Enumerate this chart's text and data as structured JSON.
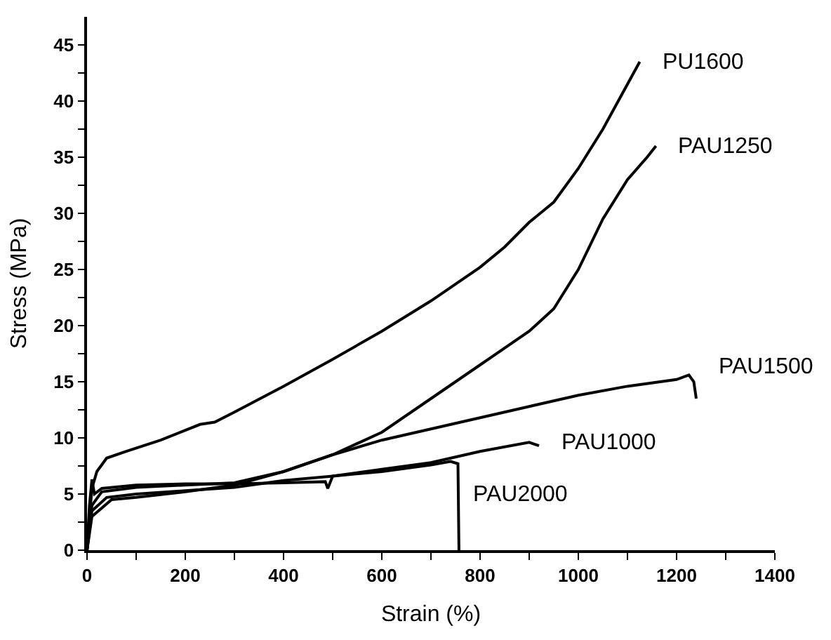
{
  "chart_data": {
    "type": "line",
    "xlabel": "Strain (%)",
    "ylabel": "Stress (MPa)",
    "xlim": [
      0,
      1400
    ],
    "ylim": [
      0,
      47.5
    ],
    "xticks": [
      0,
      {
        "value": 100,
        "label": null
      },
      200,
      {
        "value": 300,
        "label": null
      },
      400,
      {
        "value": 500,
        "label": null
      },
      600,
      {
        "value": 700,
        "label": null
      },
      800,
      {
        "value": 900,
        "label": null
      },
      1000,
      {
        "value": 1100,
        "label": null
      },
      1200,
      {
        "value": 1300,
        "label": null
      },
      1400
    ],
    "yticks": [
      0,
      {
        "value": 2.5,
        "label": null
      },
      5,
      {
        "value": 7.5,
        "label": null
      },
      10,
      {
        "value": 12.5,
        "label": null
      },
      15,
      {
        "value": 17.5,
        "label": null
      },
      20,
      {
        "value": 22.5,
        "label": null
      },
      25,
      {
        "value": 27.5,
        "label": null
      },
      30,
      {
        "value": 32.5,
        "label": null
      },
      35,
      {
        "value": 37.5,
        "label": null
      },
      40,
      {
        "value": 42.5,
        "label": null
      },
      45
    ],
    "marker": "none",
    "line_style": "solid",
    "series": [
      {
        "name": "PU1600",
        "color": "#000000",
        "x": [
          0,
          5,
          10,
          20,
          40,
          80,
          150,
          230,
          260,
          300,
          400,
          500,
          600,
          700,
          800,
          850,
          900,
          950,
          1000,
          1050,
          1100,
          1125
        ],
        "values": [
          0,
          3,
          5.5,
          7,
          8.2,
          8.8,
          9.8,
          11.2,
          11.4,
          12.3,
          14.6,
          17,
          19.5,
          22.2,
          25.2,
          27,
          29.2,
          31,
          34,
          37.5,
          41.5,
          43.5
        ]
      },
      {
        "name": "PAU1250",
        "color": "#000000",
        "x": [
          0,
          10,
          30,
          100,
          200,
          300,
          400,
          500,
          600,
          700,
          800,
          900,
          950,
          1000,
          1050,
          1100,
          1140,
          1158
        ],
        "values": [
          0,
          4,
          5.2,
          5.6,
          5.8,
          6,
          7,
          8.5,
          10.5,
          13.5,
          16.5,
          19.5,
          21.5,
          25,
          29.5,
          33,
          35,
          36
        ]
      },
      {
        "name": "PAU1500",
        "color": "#000000",
        "x": [
          0,
          10,
          50,
          100,
          200,
          300,
          400,
          500,
          600,
          700,
          800,
          900,
          1000,
          1100,
          1200,
          1225,
          1235,
          1240
        ],
        "values": [
          0,
          3,
          4.5,
          4.7,
          5.2,
          5.8,
          7,
          8.5,
          9.8,
          10.8,
          11.8,
          12.8,
          13.8,
          14.6,
          15.2,
          15.6,
          15,
          13.5
        ]
      },
      {
        "name": "PAU1000",
        "color": "#000000",
        "x": [
          0,
          10,
          40,
          100,
          200,
          300,
          400,
          500,
          600,
          700,
          800,
          900,
          920
        ],
        "values": [
          0,
          3.5,
          4.7,
          5,
          5.3,
          5.6,
          6.2,
          6.6,
          7.2,
          7.8,
          8.8,
          9.6,
          9.3
        ]
      },
      {
        "name": "PAU2000",
        "color": "#000000",
        "x": [
          0,
          5,
          10,
          15,
          30,
          100,
          200,
          300,
          400,
          485,
          490,
          500,
          600,
          700,
          740,
          755,
          757
        ],
        "values": [
          0,
          4,
          6.3,
          5,
          5.5,
          5.8,
          5.9,
          5.9,
          6,
          6.1,
          5.5,
          6.6,
          7,
          7.6,
          7.9,
          7.7,
          0
        ]
      }
    ]
  }
}
